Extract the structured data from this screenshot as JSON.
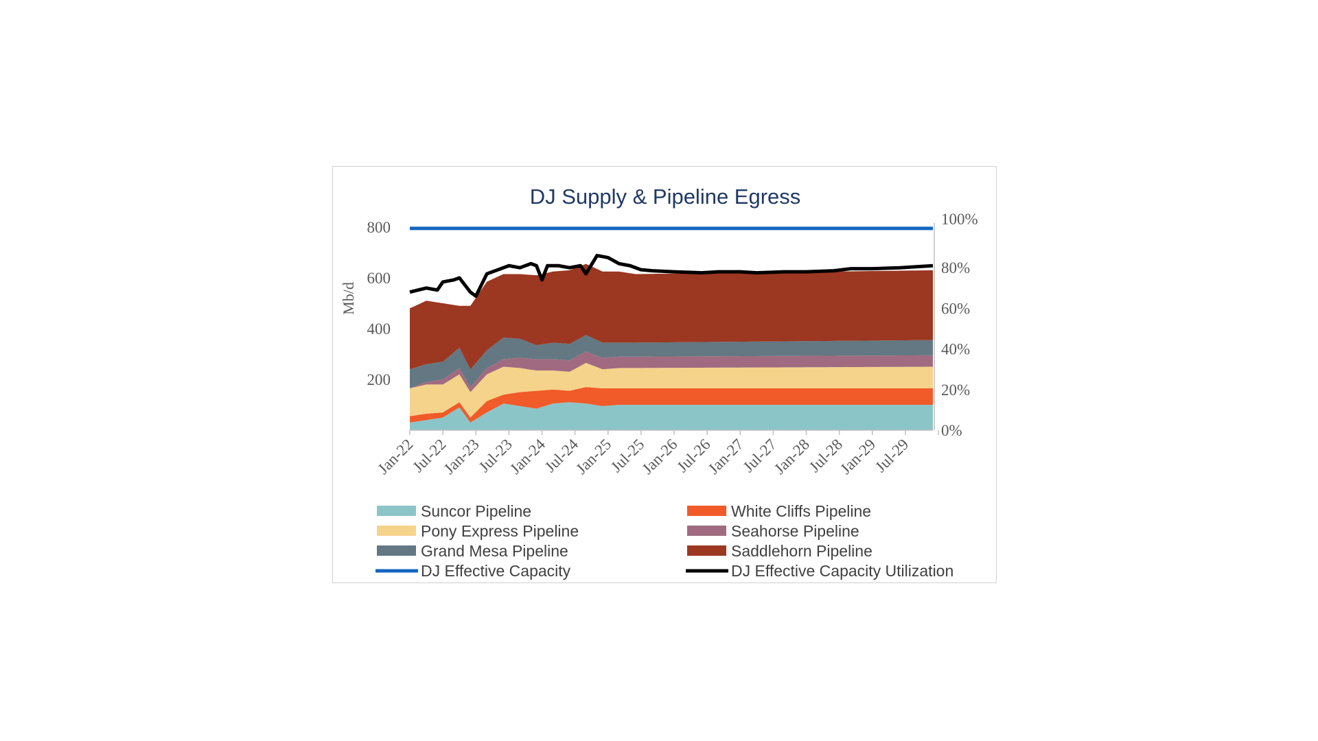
{
  "chart_data": {
    "type": "area",
    "title": "DJ Supply & Pipeline Egress",
    "ylabel": "Mb/d",
    "y2label": "",
    "ylim": [
      0,
      800
    ],
    "y2lim": [
      0,
      1
    ],
    "yticks": [
      "200",
      "400",
      "600",
      "800"
    ],
    "y2ticks": [
      "0%",
      "20%",
      "40%",
      "60%",
      "80%",
      "100%"
    ],
    "x_start": "2022-01",
    "x_end": "2029-12",
    "xtick_labels": [
      "Jan-22",
      "Jul-22",
      "Jan-23",
      "Jul-23",
      "Jan-24",
      "Jul-24",
      "Jan-25",
      "Jul-25",
      "Jan-26",
      "Jul-26",
      "Jan-27",
      "Jul-27",
      "Jan-28",
      "Jul-28",
      "Jan-29",
      "Jul-29"
    ],
    "stacked": true,
    "stacked_series": [
      {
        "name": "Suncor Pipeline",
        "color": "#8cc5c7",
        "points": [
          [
            "2022-01",
            30
          ],
          [
            "2022-04",
            40
          ],
          [
            "2022-07",
            50
          ],
          [
            "2022-10",
            90
          ],
          [
            "2022-12",
            30
          ],
          [
            "2023-03",
            70
          ],
          [
            "2023-06",
            105
          ],
          [
            "2023-09",
            95
          ],
          [
            "2023-12",
            85
          ],
          [
            "2024-03",
            105
          ],
          [
            "2024-06",
            110
          ],
          [
            "2024-09",
            105
          ],
          [
            "2024-12",
            95
          ],
          [
            "2025-03",
            100
          ],
          [
            "2025-06",
            100
          ],
          [
            "2029-12",
            100
          ]
        ]
      },
      {
        "name": "White Cliffs Pipeline",
        "color": "#f15a29",
        "points": [
          [
            "2022-01",
            25
          ],
          [
            "2022-04",
            25
          ],
          [
            "2022-07",
            20
          ],
          [
            "2022-10",
            20
          ],
          [
            "2022-12",
            20
          ],
          [
            "2023-03",
            45
          ],
          [
            "2023-06",
            35
          ],
          [
            "2023-09",
            55
          ],
          [
            "2023-12",
            70
          ],
          [
            "2024-03",
            55
          ],
          [
            "2024-06",
            45
          ],
          [
            "2024-09",
            65
          ],
          [
            "2024-12",
            70
          ],
          [
            "2025-03",
            65
          ],
          [
            "2025-06",
            65
          ],
          [
            "2029-12",
            65
          ]
        ]
      },
      {
        "name": "Pony Express Pipeline",
        "color": "#f5d38a",
        "points": [
          [
            "2022-01",
            110
          ],
          [
            "2022-04",
            115
          ],
          [
            "2022-07",
            110
          ],
          [
            "2022-10",
            110
          ],
          [
            "2022-12",
            100
          ],
          [
            "2023-03",
            105
          ],
          [
            "2023-06",
            110
          ],
          [
            "2023-09",
            95
          ],
          [
            "2023-12",
            80
          ],
          [
            "2024-03",
            75
          ],
          [
            "2024-06",
            75
          ],
          [
            "2024-09",
            95
          ],
          [
            "2024-12",
            75
          ],
          [
            "2025-03",
            80
          ],
          [
            "2025-06",
            80
          ],
          [
            "2029-12",
            85
          ]
        ]
      },
      {
        "name": "Seahorse Pipeline",
        "color": "#a06b80",
        "points": [
          [
            "2022-01",
            0
          ],
          [
            "2022-04",
            10
          ],
          [
            "2022-07",
            20
          ],
          [
            "2022-10",
            25
          ],
          [
            "2022-12",
            20
          ],
          [
            "2023-03",
            25
          ],
          [
            "2023-06",
            30
          ],
          [
            "2023-09",
            40
          ],
          [
            "2023-12",
            45
          ],
          [
            "2024-03",
            45
          ],
          [
            "2024-06",
            45
          ],
          [
            "2024-09",
            45
          ],
          [
            "2024-12",
            45
          ],
          [
            "2025-03",
            45
          ],
          [
            "2025-06",
            45
          ],
          [
            "2029-12",
            45
          ]
        ]
      },
      {
        "name": "Grand Mesa Pipeline",
        "color": "#637882",
        "points": [
          [
            "2022-01",
            75
          ],
          [
            "2022-04",
            70
          ],
          [
            "2022-07",
            70
          ],
          [
            "2022-10",
            80
          ],
          [
            "2022-12",
            70
          ],
          [
            "2023-03",
            70
          ],
          [
            "2023-06",
            85
          ],
          [
            "2023-09",
            75
          ],
          [
            "2023-12",
            55
          ],
          [
            "2024-03",
            65
          ],
          [
            "2024-06",
            65
          ],
          [
            "2024-09",
            65
          ],
          [
            "2024-12",
            60
          ],
          [
            "2025-03",
            55
          ],
          [
            "2025-06",
            55
          ],
          [
            "2029-12",
            60
          ]
        ]
      },
      {
        "name": "Saddlehorn Pipeline",
        "color": "#9c3721",
        "points": [
          [
            "2022-01",
            240
          ],
          [
            "2022-04",
            250
          ],
          [
            "2022-07",
            230
          ],
          [
            "2022-10",
            165
          ],
          [
            "2022-12",
            250
          ],
          [
            "2023-03",
            270
          ],
          [
            "2023-06",
            250
          ],
          [
            "2023-09",
            255
          ],
          [
            "2023-12",
            275
          ],
          [
            "2024-03",
            280
          ],
          [
            "2024-06",
            290
          ],
          [
            "2024-09",
            280
          ],
          [
            "2024-12",
            280
          ],
          [
            "2025-03",
            280
          ],
          [
            "2025-06",
            270
          ],
          [
            "2029-12",
            275
          ]
        ]
      }
    ],
    "lines": [
      {
        "name": "DJ Effective Capacity",
        "axis": "left",
        "color": "#1565c0",
        "points": [
          [
            "2022-01",
            795
          ],
          [
            "2029-12",
            795
          ]
        ]
      },
      {
        "name": "DJ Effective Capacity Utilization",
        "axis": "right",
        "color": "#000000",
        "points": [
          [
            "2022-01",
            0.68
          ],
          [
            "2022-04",
            0.7
          ],
          [
            "2022-06",
            0.69
          ],
          [
            "2022-07",
            0.73
          ],
          [
            "2022-09",
            0.74
          ],
          [
            "2022-10",
            0.75
          ],
          [
            "2022-12",
            0.68
          ],
          [
            "2023-01",
            0.66
          ],
          [
            "2023-03",
            0.77
          ],
          [
            "2023-05",
            0.79
          ],
          [
            "2023-07",
            0.81
          ],
          [
            "2023-09",
            0.8
          ],
          [
            "2023-11",
            0.82
          ],
          [
            "2023-12",
            0.81
          ],
          [
            "2024-01",
            0.74
          ],
          [
            "2024-02",
            0.81
          ],
          [
            "2024-04",
            0.81
          ],
          [
            "2024-06",
            0.8
          ],
          [
            "2024-08",
            0.81
          ],
          [
            "2024-09",
            0.77
          ],
          [
            "2024-11",
            0.86
          ],
          [
            "2025-01",
            0.85
          ],
          [
            "2025-03",
            0.82
          ],
          [
            "2025-05",
            0.81
          ],
          [
            "2025-07",
            0.79
          ],
          [
            "2025-09",
            0.785
          ],
          [
            "2026-01",
            0.78
          ],
          [
            "2026-06",
            0.775
          ],
          [
            "2026-09",
            0.78
          ],
          [
            "2027-01",
            0.78
          ],
          [
            "2027-04",
            0.775
          ],
          [
            "2027-09",
            0.78
          ],
          [
            "2028-01",
            0.78
          ],
          [
            "2028-06",
            0.785
          ],
          [
            "2028-09",
            0.795
          ],
          [
            "2029-01",
            0.795
          ],
          [
            "2029-06",
            0.8
          ],
          [
            "2029-12",
            0.81
          ]
        ]
      }
    ],
    "legend_position": "bottom"
  }
}
